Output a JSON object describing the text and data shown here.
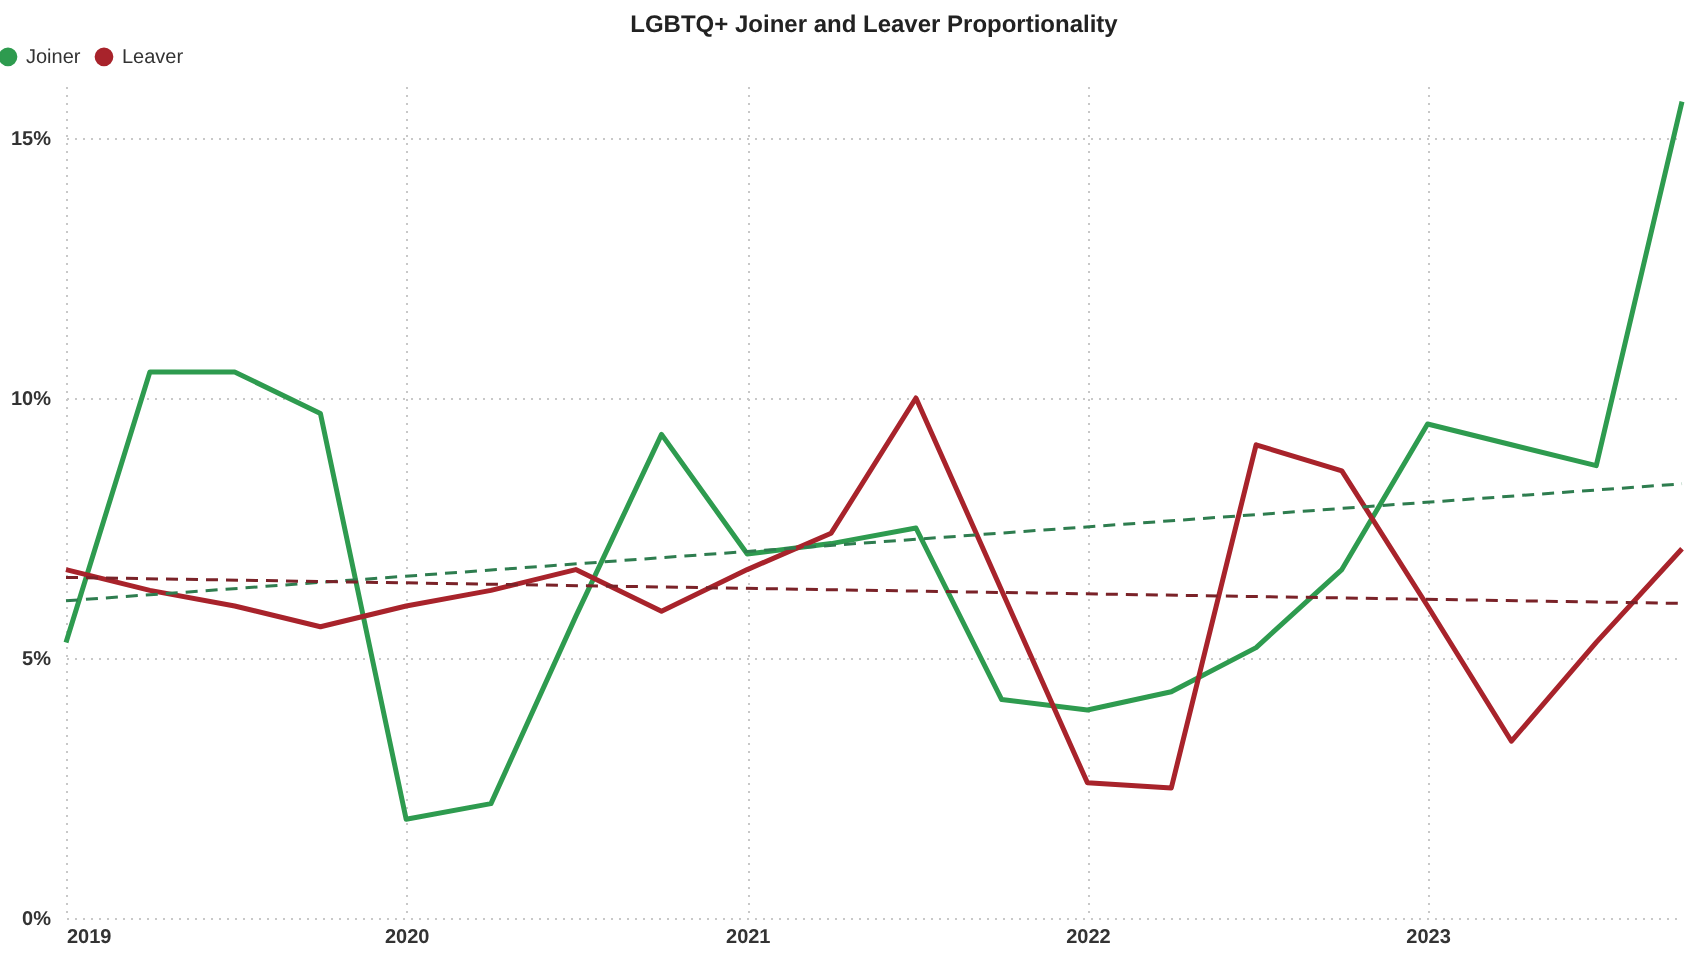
{
  "chart_data": {
    "type": "line",
    "title": "LGBTQ+ Joiner and Leaver Proportionality",
    "x": [
      "2019-01",
      "2019-04",
      "2019-07",
      "2019-10",
      "2020-01",
      "2020-04",
      "2020-07",
      "2020-10",
      "2021-01",
      "2021-04",
      "2021-07",
      "2021-10",
      "2022-01",
      "2022-04",
      "2022-07",
      "2022-10",
      "2023-01",
      "2023-04",
      "2023-07",
      "2023-10"
    ],
    "xlim": [
      "2019-01",
      "2023-10"
    ],
    "xticks": [
      {
        "value": "2019-01",
        "label": "2019"
      },
      {
        "value": "2020-01",
        "label": "2020"
      },
      {
        "value": "2021-01",
        "label": "2021"
      },
      {
        "value": "2022-01",
        "label": "2022"
      },
      {
        "value": "2023-01",
        "label": "2023"
      }
    ],
    "ylim": [
      0,
      16
    ],
    "yticks": [
      {
        "value": 0,
        "label": "0%"
      },
      {
        "value": 5,
        "label": "5%"
      },
      {
        "value": 10,
        "label": "10%"
      },
      {
        "value": 15,
        "label": "15%"
      }
    ],
    "series": [
      {
        "name": "Joiner",
        "color": "#2e9b4f",
        "values": [
          5.3,
          10.5,
          10.5,
          9.7,
          1.9,
          2.2,
          5.8,
          9.3,
          7.0,
          7.2,
          7.5,
          4.2,
          4.0,
          4.35,
          5.2,
          6.7,
          9.5,
          9.1,
          8.7,
          15.7
        ]
      },
      {
        "name": "Leaver",
        "color": "#a8232b",
        "values": [
          6.7,
          6.3,
          6.0,
          5.6,
          6.0,
          6.3,
          6.7,
          5.9,
          6.7,
          7.4,
          10.0,
          6.3,
          2.6,
          2.5,
          9.1,
          8.6,
          6.0,
          3.4,
          5.3,
          7.1
        ]
      },
      {
        "type": "line",
        "color": "#2e7d4f",
        "line_style": "dashed",
        "x": [
          "2019-01",
          "2023-10"
        ],
        "values": [
          6.1,
          8.35
        ]
      },
      {
        "type": "line",
        "color": "#7a2228",
        "line_style": "dashed",
        "x": [
          "2019-01",
          "2023-10"
        ],
        "values": [
          6.55,
          6.05
        ]
      }
    ],
    "grid": true,
    "legend": "top left",
    "line_style": "solid",
    "marker": "none"
  }
}
